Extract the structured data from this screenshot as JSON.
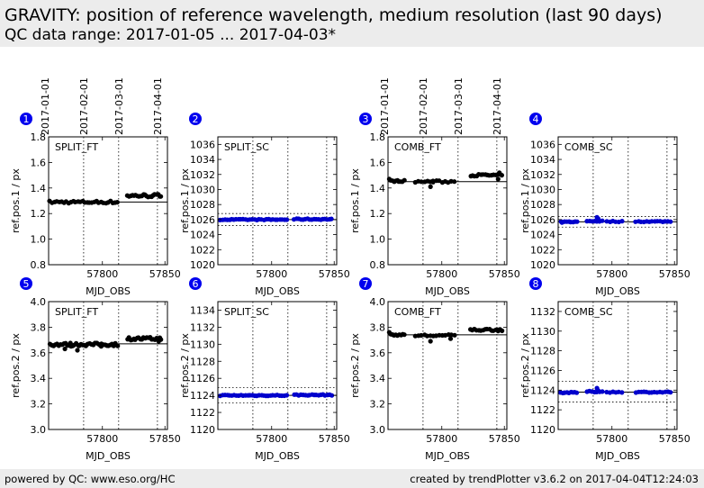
{
  "header": {
    "title": "GRAVITY: position of reference wavelength, medium resolution (last 90 days)",
    "subtitle": "QC data range: 2017-01-05 ... 2017-04-03*"
  },
  "footer": {
    "left": "powered by QC: www.eso.org/HC",
    "right": "created by trendPlotter v3.6.2 on 2017-04-04T12:24:03"
  },
  "colors": {
    "ft_marker": "#000000",
    "sc_marker": "#0000cc",
    "badge": "#0000ee",
    "header_bg": "#ececec"
  },
  "date_ticks": [
    "2017-01-01",
    "2017-02-01",
    "2017-03-01",
    "2017-04-01"
  ],
  "date_tick_mjd": [
    57754,
    57785,
    57813,
    57844
  ],
  "chart_data": [
    {
      "id": "1",
      "type": "scatter",
      "label": "SPLIT_FT",
      "ylabel": "ref.pos.1 / px",
      "xlabel": "MJD_OBS",
      "xlim": [
        57757,
        57852
      ],
      "ylim": [
        0.8,
        1.8
      ],
      "yticks": [
        0.8,
        1.0,
        1.2,
        1.4,
        1.6,
        1.8
      ],
      "decimals": 1,
      "xticks": [
        57800,
        57850
      ],
      "date_axis": true,
      "color": "#000000",
      "ref": 1.29,
      "band": null,
      "segments": [
        {
          "x0": 57758,
          "x1": 57812,
          "y": 1.29,
          "n": 30,
          "j": 0.01
        },
        {
          "x0": 57820,
          "x1": 57847,
          "y": 1.34,
          "n": 22,
          "j": 0.012
        }
      ],
      "points": []
    },
    {
      "id": "2",
      "type": "scatter",
      "label": "SPLIT_SC",
      "ylabel": "ref.pos.1 / px",
      "xlabel": "MJD_OBS",
      "xlim": [
        57757,
        57852
      ],
      "ylim": [
        1020,
        1037
      ],
      "yticks": [
        1020,
        1022,
        1024,
        1026,
        1028,
        1030,
        1032,
        1034,
        1036
      ],
      "decimals": 0,
      "xticks": [
        57800,
        57850
      ],
      "date_axis": false,
      "color": "#0000cc",
      "ref": 1026.0,
      "band": [
        1025.2,
        1026.8
      ],
      "segments": [
        {
          "x0": 57759,
          "x1": 57812,
          "y": 1026.0,
          "n": 30,
          "j": 0.06
        },
        {
          "x0": 57818,
          "x1": 57848,
          "y": 1026.05,
          "n": 18,
          "j": 0.07
        }
      ],
      "points": []
    },
    {
      "id": "3",
      "type": "scatter",
      "label": "COMB_FT",
      "ylabel": "ref.pos.1 / px",
      "xlabel": "MJD_OBS",
      "xlim": [
        57757,
        57852
      ],
      "ylim": [
        0.8,
        1.8
      ],
      "yticks": [
        0.8,
        1.0,
        1.2,
        1.4,
        1.6,
        1.8
      ],
      "decimals": 1,
      "xticks": [
        57800,
        57850
      ],
      "date_axis": true,
      "color": "#000000",
      "ref": 1.45,
      "band": null,
      "segments": [
        {
          "x0": 57759,
          "x1": 57770,
          "y": 1.455,
          "n": 9,
          "j": 0.006
        },
        {
          "x0": 57779,
          "x1": 57810,
          "y": 1.45,
          "n": 14,
          "j": 0.008
        },
        {
          "x0": 57823,
          "x1": 57848,
          "y": 1.5,
          "n": 16,
          "j": 0.008
        }
      ],
      "points": [
        [
          57758,
          1.47
        ],
        [
          57791,
          1.41
        ],
        [
          57793,
          1.455
        ],
        [
          57845,
          1.47
        ],
        [
          57846,
          1.52
        ]
      ]
    },
    {
      "id": "4",
      "type": "scatter",
      "label": "COMB_SC",
      "ylabel": "ref.pos.1 / px",
      "xlabel": "MJD_OBS",
      "xlim": [
        57757,
        57852
      ],
      "ylim": [
        1020,
        1037
      ],
      "yticks": [
        1020,
        1022,
        1024,
        1026,
        1028,
        1030,
        1032,
        1034,
        1036
      ],
      "decimals": 0,
      "xticks": [
        57800,
        57850
      ],
      "date_axis": false,
      "color": "#0000cc",
      "ref": 1025.7,
      "band": [
        1025.0,
        1026.4
      ],
      "segments": [
        {
          "x0": 57759,
          "x1": 57772,
          "y": 1025.7,
          "n": 9,
          "j": 0.05
        },
        {
          "x0": 57780,
          "x1": 57792,
          "y": 1025.8,
          "n": 7,
          "j": 0.07
        },
        {
          "x0": 57796,
          "x1": 57808,
          "y": 1025.75,
          "n": 6,
          "j": 0.06
        },
        {
          "x0": 57819,
          "x1": 57847,
          "y": 1025.75,
          "n": 14,
          "j": 0.06
        }
      ],
      "points": [
        [
          57788,
          1026.3
        ],
        [
          57789,
          1026.1
        ],
        [
          57760,
          1025.6
        ]
      ]
    },
    {
      "id": "5",
      "type": "scatter",
      "label": "SPLIT_FT",
      "ylabel": "ref.pos.2 / px",
      "xlabel": "MJD_OBS",
      "xlim": [
        57757,
        57852
      ],
      "ylim": [
        3.0,
        4.0
      ],
      "yticks": [
        3.0,
        3.2,
        3.4,
        3.6,
        3.8,
        4.0
      ],
      "decimals": 1,
      "xticks": [
        57800,
        57850
      ],
      "date_axis": false,
      "color": "#000000",
      "ref": 3.67,
      "band": null,
      "segments": [
        {
          "x0": 57758,
          "x1": 57812,
          "y": 3.665,
          "n": 40,
          "j": 0.012
        },
        {
          "x0": 57820,
          "x1": 57847,
          "y": 3.71,
          "n": 22,
          "j": 0.012
        }
      ],
      "points": [
        [
          57770,
          3.63
        ],
        [
          57775,
          3.65
        ],
        [
          57780,
          3.62
        ],
        [
          57799,
          3.65
        ],
        [
          57845,
          3.69
        ]
      ]
    },
    {
      "id": "6",
      "type": "scatter",
      "label": "SPLIT_SC",
      "ylabel": "ref.pos.2 / px",
      "xlabel": "MJD_OBS",
      "xlim": [
        57757,
        57852
      ],
      "ylim": [
        1120,
        1135
      ],
      "yticks": [
        1120,
        1122,
        1124,
        1126,
        1128,
        1130,
        1132,
        1134
      ],
      "decimals": 0,
      "xticks": [
        57800,
        57850
      ],
      "date_axis": false,
      "color": "#0000cc",
      "ref": 1124.0,
      "band": [
        1123.1,
        1124.9
      ],
      "segments": [
        {
          "x0": 57759,
          "x1": 57812,
          "y": 1124.0,
          "n": 30,
          "j": 0.06
        },
        {
          "x0": 57818,
          "x1": 57848,
          "y": 1124.05,
          "n": 18,
          "j": 0.06
        }
      ],
      "points": []
    },
    {
      "id": "7",
      "type": "scatter",
      "label": "COMB_FT",
      "ylabel": "ref.pos.2 / px",
      "xlabel": "MJD_OBS",
      "xlim": [
        57757,
        57852
      ],
      "ylim": [
        3.0,
        4.0
      ],
      "yticks": [
        3.0,
        3.2,
        3.4,
        3.6,
        3.8,
        4.0
      ],
      "decimals": 1,
      "xticks": [
        57800,
        57850
      ],
      "date_axis": false,
      "color": "#000000",
      "ref": 3.74,
      "band": null,
      "segments": [
        {
          "x0": 57759,
          "x1": 57770,
          "y": 3.74,
          "n": 9,
          "j": 0.006
        },
        {
          "x0": 57779,
          "x1": 57810,
          "y": 3.735,
          "n": 14,
          "j": 0.008
        },
        {
          "x0": 57823,
          "x1": 57848,
          "y": 3.78,
          "n": 16,
          "j": 0.008
        }
      ],
      "points": [
        [
          57758,
          3.76
        ],
        [
          57791,
          3.69
        ],
        [
          57807,
          3.71
        ],
        [
          57845,
          3.77
        ]
      ]
    },
    {
      "id": "8",
      "type": "scatter",
      "label": "COMB_SC",
      "ylabel": "ref.pos.2 / px",
      "xlabel": "MJD_OBS",
      "xlim": [
        57757,
        57852
      ],
      "ylim": [
        1120,
        1133
      ],
      "yticks": [
        1120,
        1122,
        1124,
        1126,
        1128,
        1130,
        1132
      ],
      "decimals": 0,
      "xticks": [
        57800,
        57850
      ],
      "date_axis": false,
      "color": "#0000cc",
      "ref": 1123.8,
      "band": [
        1122.8,
        1124.9
      ],
      "segments": [
        {
          "x0": 57759,
          "x1": 57772,
          "y": 1123.75,
          "n": 9,
          "j": 0.05
        },
        {
          "x0": 57780,
          "x1": 57792,
          "y": 1123.85,
          "n": 7,
          "j": 0.06
        },
        {
          "x0": 57796,
          "x1": 57808,
          "y": 1123.8,
          "n": 6,
          "j": 0.05
        },
        {
          "x0": 57819,
          "x1": 57847,
          "y": 1123.8,
          "n": 14,
          "j": 0.05
        }
      ],
      "points": [
        [
          57788,
          1124.2
        ],
        [
          57789,
          1123.95
        ]
      ]
    }
  ]
}
